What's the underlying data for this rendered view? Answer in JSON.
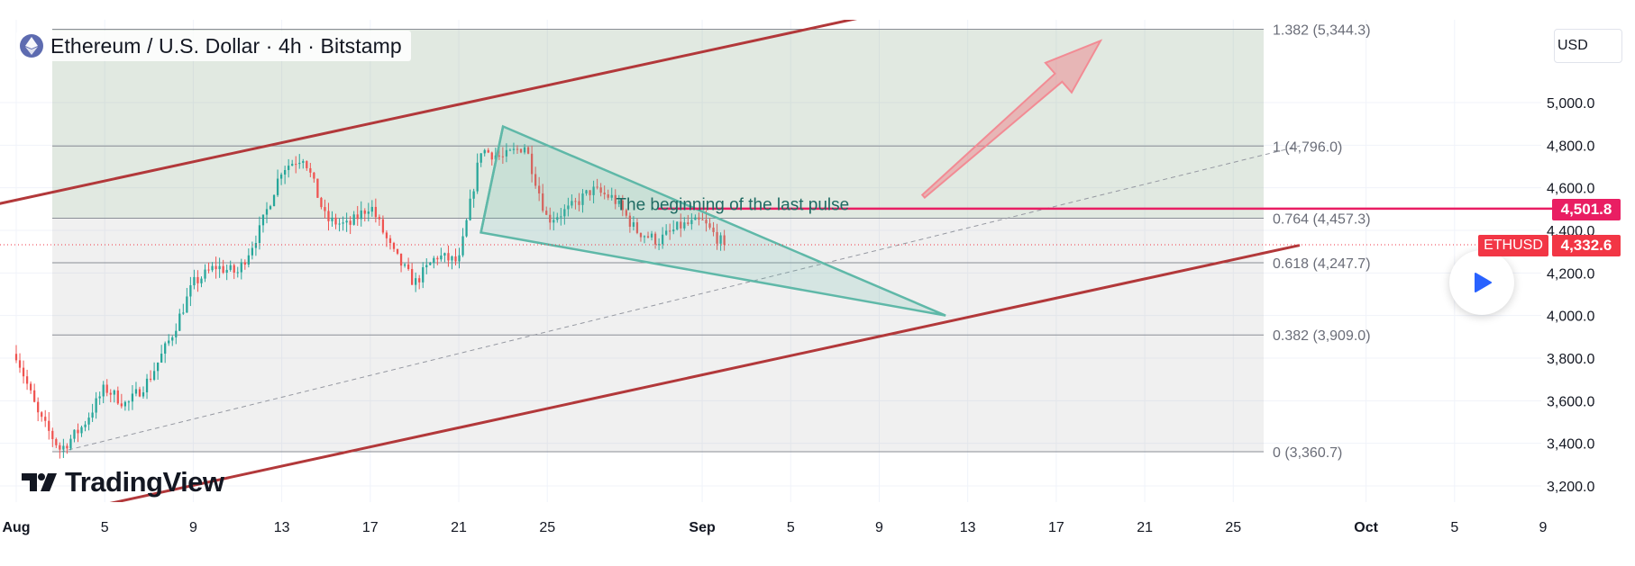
{
  "header": {
    "title": "Ethereum / U.S. Dollar · 4h · Bitstamp",
    "currency": "USD",
    "logo_text": "TradingView"
  },
  "icons": {
    "symbol": "ethereum-icon",
    "play": "play-icon",
    "brand": "tradingview-logo-icon"
  },
  "colors": {
    "up": "#26a69a",
    "down": "#ef5350",
    "channel": "#b2383a",
    "wedge": "#5fb8a8",
    "alert_line": "#e91e63",
    "price_label": "#f23645",
    "arrow": "#f28b94",
    "accent": "#2962ff"
  },
  "chart_data": {
    "type": "candlestick",
    "symbol": "ETHUSD",
    "timeframe": "4h",
    "exchange": "Bitstamp",
    "y_axis": {
      "range": [
        3100,
        5450
      ],
      "ticks": [
        "3,200.0",
        "3,400.0",
        "3,600.0",
        "3,800.0",
        "4,000.0",
        "4,200.0",
        "4,400.0",
        "4,600.0",
        "4,800.0",
        "5,000.0"
      ],
      "tick_values": [
        3200,
        3400,
        3600,
        3800,
        4000,
        4200,
        4400,
        4600,
        4800,
        5000
      ]
    },
    "x_axis": {
      "range": [
        "2025-08-01",
        "2025-10-09"
      ],
      "ticks": [
        {
          "label": "Aug",
          "date": "2025-08-01",
          "bold": true
        },
        {
          "label": "5",
          "date": "2025-08-05"
        },
        {
          "label": "9",
          "date": "2025-08-09"
        },
        {
          "label": "13",
          "date": "2025-08-13"
        },
        {
          "label": "17",
          "date": "2025-08-17"
        },
        {
          "label": "21",
          "date": "2025-08-21"
        },
        {
          "label": "25",
          "date": "2025-08-25"
        },
        {
          "label": "Sep",
          "date": "2025-09-01",
          "bold": true
        },
        {
          "label": "5",
          "date": "2025-09-05"
        },
        {
          "label": "9",
          "date": "2025-09-09"
        },
        {
          "label": "13",
          "date": "2025-09-13"
        },
        {
          "label": "17",
          "date": "2025-09-17"
        },
        {
          "label": "21",
          "date": "2025-09-21"
        },
        {
          "label": "25",
          "date": "2025-09-25"
        },
        {
          "label": "Oct",
          "date": "2025-10-01",
          "bold": true
        },
        {
          "label": "5",
          "date": "2025-10-05"
        },
        {
          "label": "9",
          "date": "2025-10-09"
        }
      ]
    },
    "price_path": [
      [
        "2025-08-01",
        3820
      ],
      [
        "2025-08-02",
        3530
      ],
      [
        "2025-08-03",
        3370
      ],
      [
        "2025-08-04",
        3480
      ],
      [
        "2025-08-05",
        3660
      ],
      [
        "2025-08-06",
        3580
      ],
      [
        "2025-08-07",
        3700
      ],
      [
        "2025-08-08",
        3900
      ],
      [
        "2025-08-09",
        4150
      ],
      [
        "2025-08-10",
        4230
      ],
      [
        "2025-08-11",
        4200
      ],
      [
        "2025-08-12",
        4400
      ],
      [
        "2025-08-13",
        4690
      ],
      [
        "2025-08-14",
        4750
      ],
      [
        "2025-08-15",
        4450
      ],
      [
        "2025-08-16",
        4420
      ],
      [
        "2025-08-17",
        4520
      ],
      [
        "2025-08-18",
        4300
      ],
      [
        "2025-08-19",
        4150
      ],
      [
        "2025-08-20",
        4280
      ],
      [
        "2025-08-21",
        4250
      ],
      [
        "2025-08-22",
        4780
      ],
      [
        "2025-08-23",
        4740
      ],
      [
        "2025-08-24",
        4800
      ],
      [
        "2025-08-25",
        4450
      ],
      [
        "2025-08-26",
        4500
      ],
      [
        "2025-08-27",
        4590
      ],
      [
        "2025-08-28",
        4550
      ],
      [
        "2025-08-29",
        4400
      ],
      [
        "2025-08-30",
        4350
      ],
      [
        "2025-08-31",
        4420
      ],
      [
        "2025-09-01",
        4440
      ],
      [
        "2025-09-02",
        4330
      ]
    ],
    "candle_count": 196,
    "fib_levels": [
      {
        "ratio": "1.382",
        "value": 5344.3,
        "label": "1.382 (5,344.3)"
      },
      {
        "ratio": "1",
        "value": 4796.0,
        "label": "1 (4,796.0)"
      },
      {
        "ratio": "0.764",
        "value": 4457.3,
        "label": "0.764 (4,457.3)"
      },
      {
        "ratio": "0.618",
        "value": 4247.7,
        "label": "0.618 (4,247.7)"
      },
      {
        "ratio": "0.382",
        "value": 3909.0,
        "label": "0.382 (3,909.0)"
      },
      {
        "ratio": "0",
        "value": 3360.7,
        "label": "0 (3,360.7)"
      }
    ],
    "channel_upper": [
      [
        "2025-07-31",
        4520
      ],
      [
        "2025-09-10",
        5440
      ]
    ],
    "channel_lower": [
      [
        "2025-08-04",
        3090
      ],
      [
        "2025-09-28",
        4330
      ]
    ],
    "trend_dashed": [
      [
        "2025-08-03",
        3360
      ],
      [
        "2025-09-28",
        4796
      ]
    ],
    "wedge": [
      [
        "2025-08-23",
        4888
      ],
      [
        "2025-09-12",
        4000
      ],
      [
        "2025-08-22",
        4390
      ]
    ],
    "wedge_spike": [
      [
        "2025-08-22",
        4390
      ],
      [
        "2025-08-23",
        4888
      ]
    ],
    "arrow": {
      "from": [
        "2025-09-11",
        4560
      ],
      "to": [
        "2025-09-19",
        5290
      ]
    },
    "alert_line": {
      "value": 4501.8,
      "from": "2025-08-30",
      "label": "4,501.8"
    },
    "last_price": {
      "value": 4332.6,
      "label": "4,332.6",
      "symbol": "ETHUSD"
    },
    "annotation": {
      "text": "The beginning of the last pulse",
      "date": "2025-08-29",
      "value": 4500
    }
  }
}
